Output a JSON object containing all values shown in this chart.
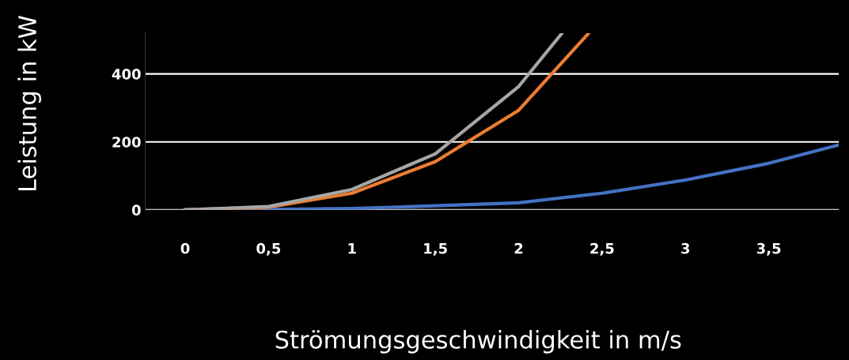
{
  "chart_data": {
    "type": "line",
    "xlabel": "Strömungsgeschwindigkeit in m/s",
    "ylabel": "Leistung in kW",
    "xlim": [
      -0.24,
      3.92
    ],
    "xticks": [
      0,
      {
        "value": 0.5,
        "label": "0,5"
      },
      1,
      {
        "value": 1.5,
        "label": "1,5"
      },
      2,
      {
        "value": 2.5,
        "label": "2,5"
      },
      3,
      {
        "value": 3.5,
        "label": "3,5"
      }
    ],
    "ylim": [
      0,
      520
    ],
    "yticks": [
      0,
      200,
      400
    ],
    "grid": "y",
    "legend": false,
    "marker": "none",
    "line_style": "solid",
    "series": [
      {
        "color": "#4472c4",
        "x": [
          0,
          0.5,
          1,
          1.5,
          2,
          2.5,
          3,
          3.5,
          3.92
        ],
        "values": [
          0,
          1,
          4,
          12,
          21,
          49,
          88,
          137,
          191
        ]
      },
      {
        "color": "#ed7d31",
        "x": [
          0,
          0.5,
          1,
          1.5,
          2,
          2.42
        ],
        "values": [
          0,
          8,
          49,
          142,
          293,
          520
        ]
      },
      {
        "color": "#a6a6a6",
        "x": [
          0,
          0.5,
          1,
          1.5,
          2,
          2.26
        ],
        "values": [
          0,
          10,
          60,
          165,
          363,
          520
        ]
      }
    ]
  }
}
